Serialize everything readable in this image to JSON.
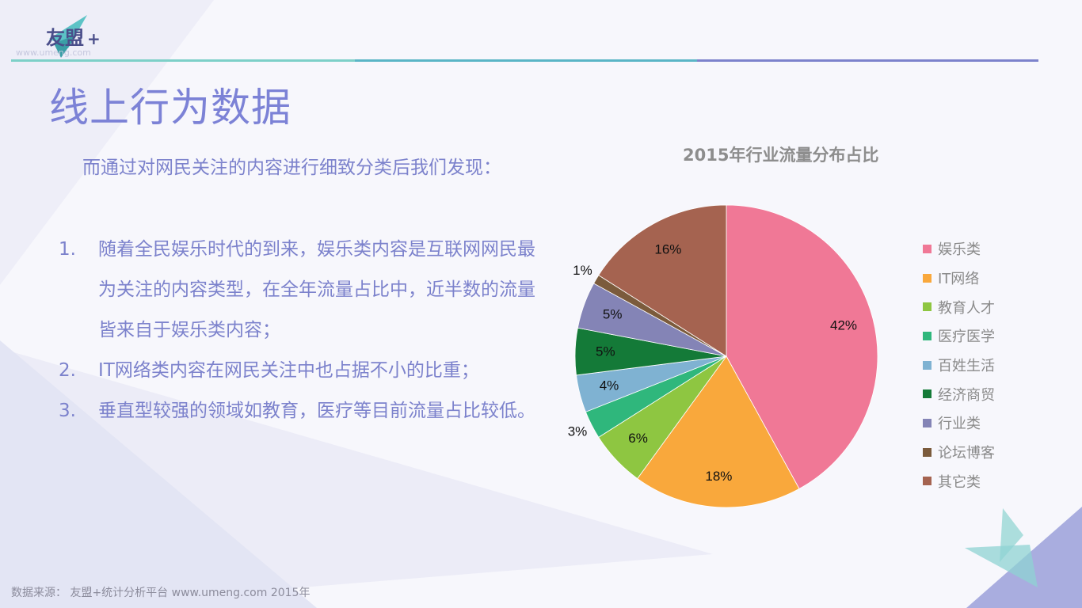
{
  "brand": {
    "name": "友盟",
    "plus": "+",
    "url": "www.umeng.com"
  },
  "page_title": "线上行为数据",
  "intro": "而通过对网民关注的内容进行细致分类后我们发现：",
  "findings": [
    {
      "num": "1.",
      "text": "随着全民娱乐时代的到来，娱乐类内容是互联网网民最为关注的内容类型，在全年流量占比中，近半数的流量皆来自于娱乐类内容；"
    },
    {
      "num": "2.",
      "text": "IT网络类内容在网民关注中也占据不小的比重；"
    },
    {
      "num": "3.",
      "text": "垂直型较强的领域如教育，医疗等目前流量占比较低。"
    }
  ],
  "footer": "数据来源： 友盟+统计分析平台 www.umeng.com 2015年",
  "chart_data": {
    "type": "pie",
    "title": "2015年行业流量分布占比",
    "categories": [
      "娱乐类",
      "IT网络",
      "教育人才",
      "医疗医学",
      "百姓生活",
      "经济商贸",
      "行业类",
      "论坛博客",
      "其它类"
    ],
    "values": [
      42,
      18,
      6,
      3,
      4,
      5,
      5,
      1,
      16
    ],
    "labels": [
      "42%",
      "18%",
      "6%",
      "3%",
      "4%",
      "5%",
      "5%",
      "1%",
      "16%"
    ],
    "colors": [
      "#f07896",
      "#f9a83c",
      "#8ec641",
      "#2fb77c",
      "#7fb2d2",
      "#147a38",
      "#8484b6",
      "#7b5b3c",
      "#a56350"
    ],
    "start": "12 o'clock",
    "direction": "clockwise",
    "legend_position": "right"
  }
}
